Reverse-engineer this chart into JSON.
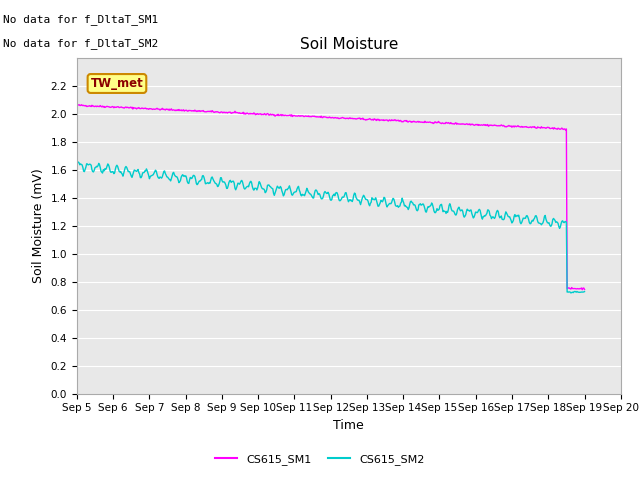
{
  "title": "Soil Moisture",
  "xlabel": "Time",
  "ylabel": "Soil Moisture (mV)",
  "annotation_line1": "No data for f_DltaT_SM1",
  "annotation_line2": "No data for f_DltaT_SM2",
  "tw_met_label": "TW_met",
  "legend_labels": [
    "CS615_SM1",
    "CS615_SM2"
  ],
  "sm1_color": "#ff00ff",
  "sm2_color": "#00cccc",
  "ylim": [
    0.0,
    2.4
  ],
  "yticks": [
    0.0,
    0.2,
    0.4,
    0.6,
    0.8,
    1.0,
    1.2,
    1.4,
    1.6,
    1.8,
    2.0,
    2.2
  ],
  "fig_bg_color": "#ffffff",
  "plot_bg_color": "#e8e8e8",
  "grid_color": "#ffffff",
  "title_fontsize": 11,
  "axis_label_fontsize": 9,
  "tick_fontsize": 7.5,
  "annotation_fontsize": 8,
  "legend_fontsize": 8
}
